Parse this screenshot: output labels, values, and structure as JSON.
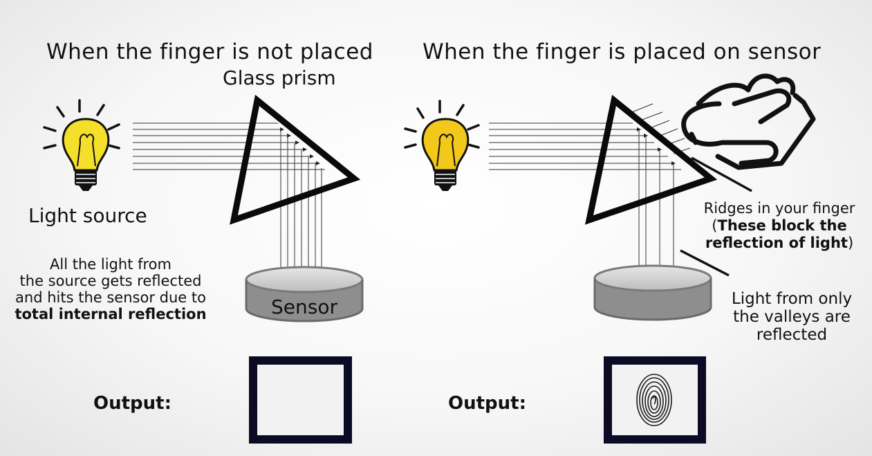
{
  "left_panel": {
    "title": "When the finger is not placed",
    "prism_label": "Glass prism",
    "light_label": "Light source",
    "description": {
      "line1": "All the light from",
      "line2": "the source gets reflected",
      "line3": "and hits the sensor due to",
      "line4_bold": "total internal reflection"
    },
    "sensor_label": "Sensor",
    "output_label": "Output:"
  },
  "right_panel": {
    "title": "When the finger is placed on sensor",
    "ridges": {
      "line1": "Ridges in your finger",
      "open_paren": "(",
      "bold1": "These block the",
      "bold2": "reflection of light",
      "close_paren": ")"
    },
    "valleys": {
      "line1": "Light from only",
      "line2": "the valleys are",
      "line3": "reflected"
    },
    "output_label": "Output:"
  },
  "colors": {
    "bulb_fill": "#f4df2a",
    "bulb_fill_right": "#f2c81a",
    "frame": "#0b0b26",
    "sensor_body": "#8c8c8c",
    "sensor_top": "#d4d4d4"
  }
}
